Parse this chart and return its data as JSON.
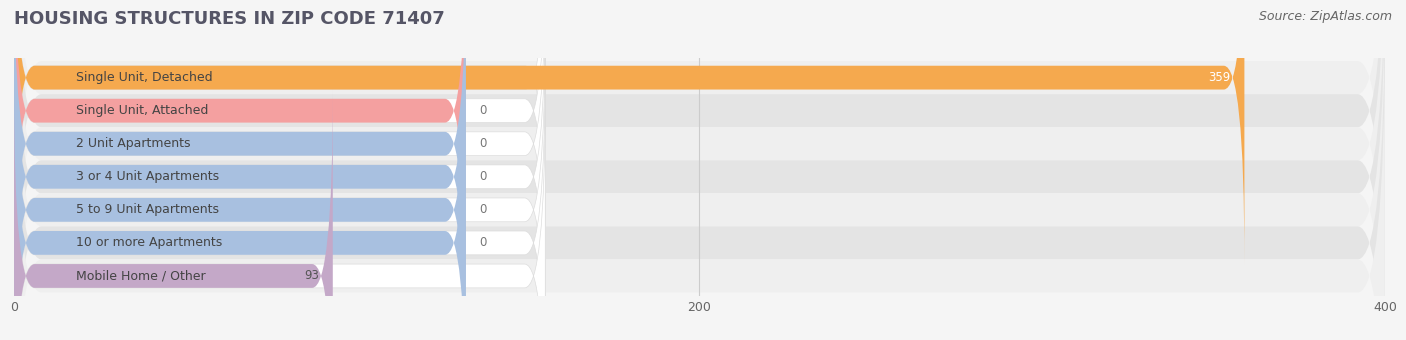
{
  "title": "HOUSING STRUCTURES IN ZIP CODE 71407",
  "source": "Source: ZipAtlas.com",
  "categories": [
    "Single Unit, Detached",
    "Single Unit, Attached",
    "2 Unit Apartments",
    "3 or 4 Unit Apartments",
    "5 to 9 Unit Apartments",
    "10 or more Apartments",
    "Mobile Home / Other"
  ],
  "values": [
    359,
    0,
    0,
    0,
    0,
    0,
    93
  ],
  "bar_colors": [
    "#F5A94E",
    "#F4A0A0",
    "#A8C0E0",
    "#A8C0E0",
    "#A8C0E0",
    "#A8C0E0",
    "#C4A8C8"
  ],
  "value_text_colors": [
    "#FFFFFF",
    "#777777",
    "#777777",
    "#777777",
    "#777777",
    "#777777",
    "#555555"
  ],
  "xlim": [
    0,
    400
  ],
  "xticks": [
    0,
    200,
    400
  ],
  "bar_height": 0.72,
  "row_bg_light": "#EFEFEF",
  "row_bg_dark": "#E4E4E4",
  "row_pill_color": "#FFFFFF",
  "background_color": "#F5F5F5",
  "title_fontsize": 13,
  "source_fontsize": 9,
  "label_fontsize": 9,
  "value_fontsize": 8.5,
  "tick_fontsize": 9,
  "grid_color": "#CCCCCC",
  "text_color": "#444444",
  "source_color": "#666666"
}
